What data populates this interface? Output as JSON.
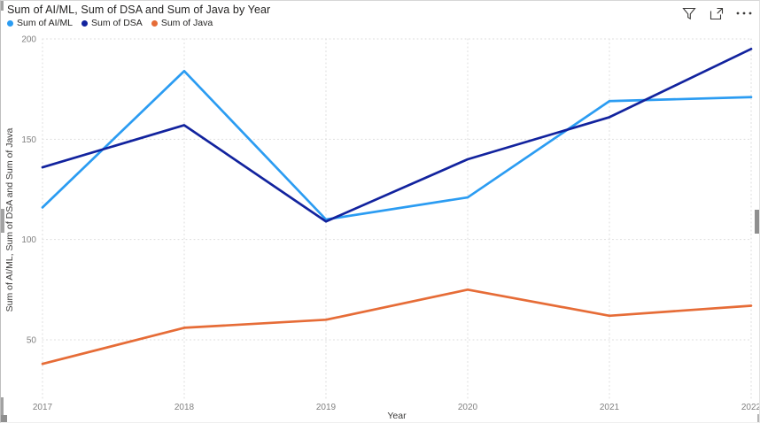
{
  "visual": {
    "title": "Sum of AI/ML, Sum of DSA and Sum of Java by Year",
    "toolbar_icons": [
      {
        "name": "filter-icon"
      },
      {
        "name": "focus-mode-icon"
      },
      {
        "name": "more-options-icon"
      }
    ]
  },
  "colors": {
    "ai_ml": "#2B9CF2",
    "dsa": "#12239E",
    "java": "#E66C37",
    "grid": "#DBDBDB",
    "tick_text": "#808080",
    "axis_title_text": "#3B3A39",
    "title_text": "#252423",
    "icon": "#3B3A39"
  },
  "chart_data": {
    "type": "line",
    "title": "Sum of AI/ML, Sum of DSA and Sum of Java by Year",
    "xlabel": "Year",
    "ylabel": "Sum of AI/ML, Sum of DSA and Sum of Java",
    "categories": [
      "2017",
      "2018",
      "2019",
      "2020",
      "2021",
      "2022"
    ],
    "series": [
      {
        "name": "Sum of AI/ML",
        "color": "#2B9CF2",
        "values": [
          116,
          184,
          110,
          121,
          169,
          171
        ]
      },
      {
        "name": "Sum of DSA",
        "color": "#12239E",
        "values": [
          136,
          157,
          109,
          140,
          161,
          195
        ]
      },
      {
        "name": "Sum of Java",
        "color": "#E66C37",
        "values": [
          38,
          56,
          60,
          75,
          62,
          67
        ]
      }
    ],
    "yticks": [
      50,
      100,
      150,
      200
    ],
    "ylim": [
      18,
      200
    ],
    "grid": "dotted",
    "legend_position": "top"
  }
}
